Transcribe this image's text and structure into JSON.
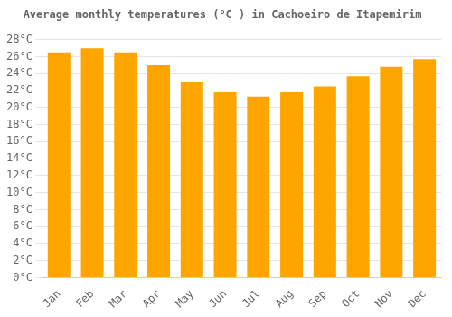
{
  "chart_data": {
    "type": "bar",
    "title": "Average monthly temperatures (°C ) in Cachoeiro de Itapemirim",
    "categories": [
      "Jan",
      "Feb",
      "Mar",
      "Apr",
      "May",
      "Jun",
      "Jul",
      "Aug",
      "Sep",
      "Oct",
      "Nov",
      "Dec"
    ],
    "values": [
      26.5,
      27.0,
      26.5,
      25.0,
      23.0,
      21.8,
      21.3,
      21.8,
      22.5,
      23.7,
      24.8,
      25.7
    ],
    "color": "#FFA500",
    "ylim": [
      0,
      29
    ],
    "yticks": [
      {
        "value": 0,
        "label": "0°C"
      },
      {
        "value": 2,
        "label": "2°C"
      },
      {
        "value": 4,
        "label": "4°C"
      },
      {
        "value": 6,
        "label": "6°C"
      },
      {
        "value": 8,
        "label": "8°C"
      },
      {
        "value": 10,
        "label": "10°C"
      },
      {
        "value": 12,
        "label": "12°C"
      },
      {
        "value": 14,
        "label": "14°C"
      },
      {
        "value": 16,
        "label": "16°C"
      },
      {
        "value": 18,
        "label": "18°C"
      },
      {
        "value": 20,
        "label": "20°C"
      },
      {
        "value": 22,
        "label": "22°C"
      },
      {
        "value": 24,
        "label": "24°C"
      },
      {
        "value": 26,
        "label": "26°C"
      },
      {
        "value": 28,
        "label": "28°C"
      }
    ],
    "grid": true
  }
}
